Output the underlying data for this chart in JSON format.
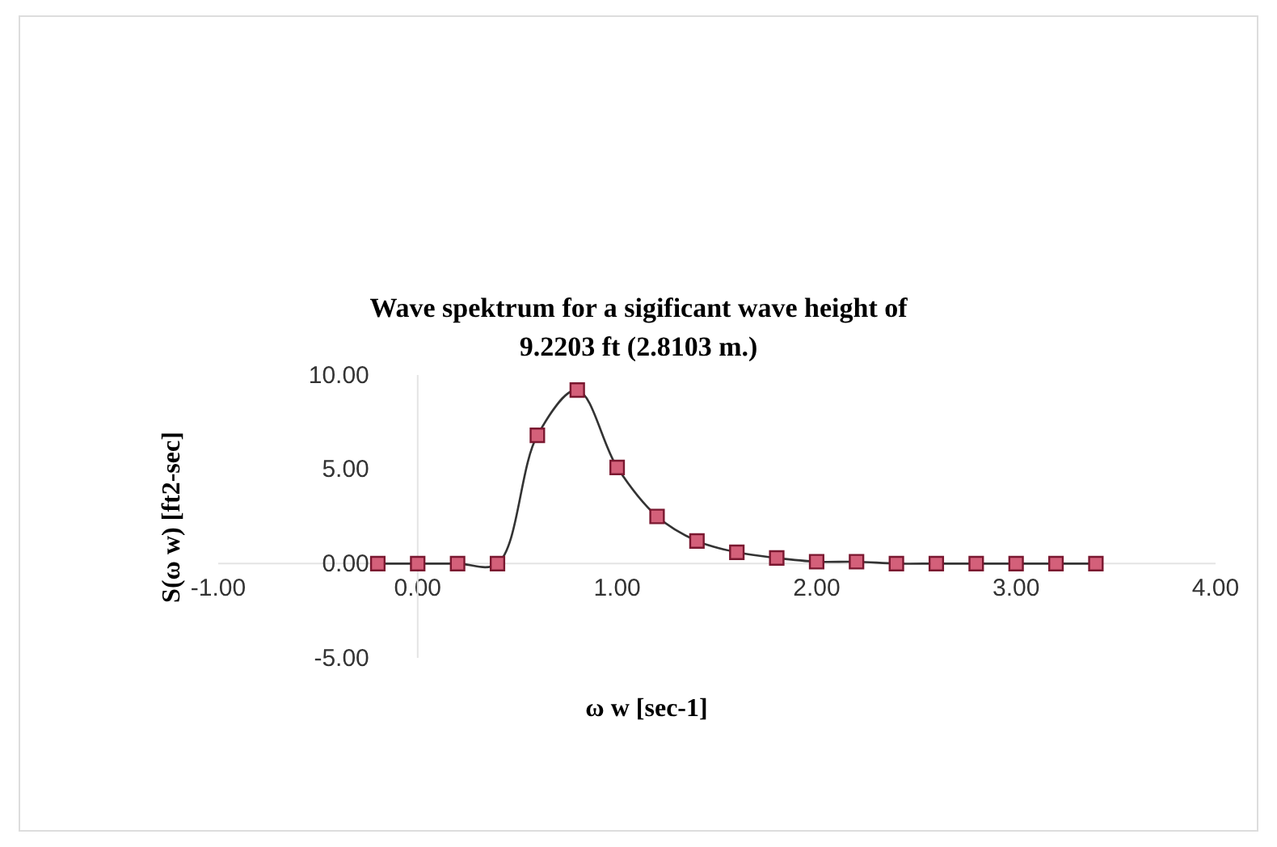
{
  "chart_data": {
    "type": "line",
    "title": "Wave spektrum for a sigificant wave height of\n9.2203 ft (2.8103 m.)",
    "xlabel": "ω w [sec-1]",
    "ylabel": "S(ω w) [ft2-sec]",
    "x": [
      -0.2,
      0,
      0.2,
      0.4,
      0.6,
      0.8,
      1.0,
      1.2,
      1.4,
      1.6,
      1.8,
      2.0,
      2.2,
      2.4,
      2.6,
      2.8,
      3.0,
      3.2,
      3.4
    ],
    "series": [
      {
        "color": "#d4607a",
        "values": [
          0,
          0,
          0,
          0,
          6.8,
          9.2,
          5.1,
          2.5,
          1.2,
          0.6,
          0.3,
          0.1,
          0.1,
          0,
          0,
          0,
          0,
          0,
          0
        ]
      }
    ],
    "xlim": [
      -1,
      4
    ],
    "xticks": [
      {
        "value": -1,
        "label": "-1.00"
      },
      {
        "value": 0,
        "label": "0.00"
      },
      {
        "value": 1,
        "label": "1.00"
      },
      {
        "value": 2,
        "label": "2.00"
      },
      {
        "value": 3,
        "label": "3.00"
      },
      {
        "value": 4,
        "label": "4.00"
      }
    ],
    "ylim": [
      -5,
      10
    ],
    "yticks": [
      {
        "value": -5,
        "label": "-5.00"
      },
      {
        "value": 0,
        "label": "0.00"
      },
      {
        "value": 5,
        "label": "5.00"
      },
      {
        "value": 10,
        "label": "10.00"
      }
    ],
    "marker": "square",
    "grid": false
  }
}
